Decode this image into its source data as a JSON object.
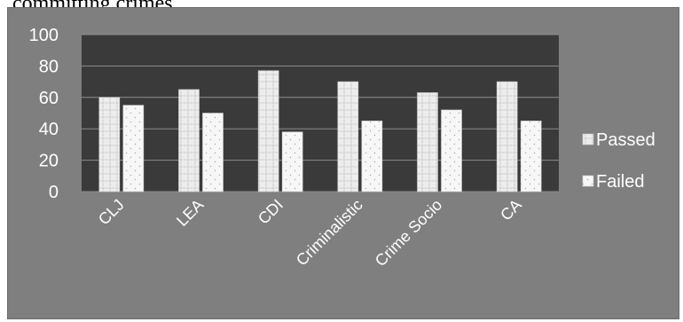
{
  "header_text": "committing crimes.",
  "colors": {
    "chart_background": "#7f7f7f",
    "plot_background": "#3a3a3a",
    "gridline": "#8c8c8c",
    "passed_fill": "#ececec",
    "failed_fill": "#f6f6f6",
    "text": "#ffffff"
  },
  "chart_data": {
    "type": "bar",
    "title": "",
    "xlabel": "",
    "ylabel": "",
    "categories": [
      "CLJ",
      "LEA",
      "CDI",
      "Criminalistic",
      "Crime Socio",
      "CA"
    ],
    "series": [
      {
        "name": "Passed",
        "values": [
          60,
          65,
          77,
          70,
          63,
          70
        ]
      },
      {
        "name": "Failed",
        "values": [
          55,
          50,
          38,
          45,
          52,
          45
        ]
      }
    ],
    "ylim": [
      0,
      100
    ],
    "yticks": [
      0,
      20,
      40,
      60,
      80,
      100
    ],
    "grid": true,
    "legend_position": "right"
  }
}
